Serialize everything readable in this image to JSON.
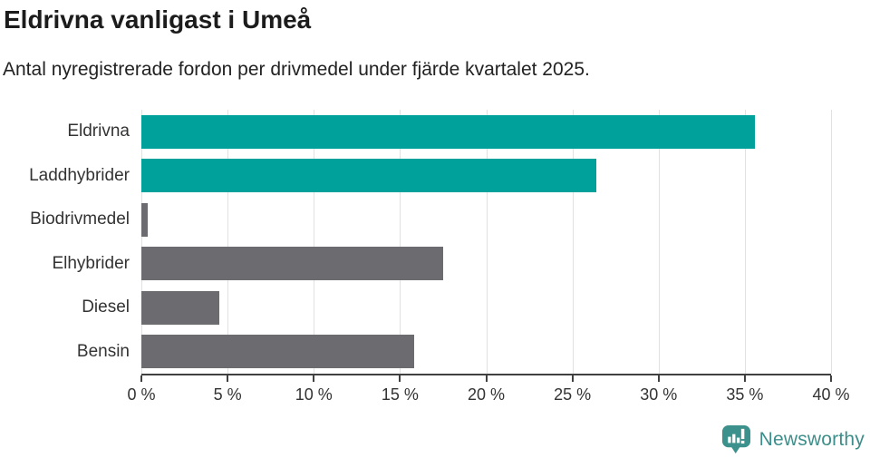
{
  "header": {
    "title": "Eldrivna vanligast i Umeå",
    "subtitle": "Antal nyregistrerade fordon per drivmedel under fjärde kvartalet 2025."
  },
  "chart_data": {
    "type": "bar",
    "orientation": "horizontal",
    "title": "Eldrivna vanligast i Umeå",
    "subtitle": "Antal nyregistrerade fordon per drivmedel under fjärde kvartalet 2025.",
    "categories": [
      "Eldrivna",
      "Laddhybrider",
      "Biodrivmedel",
      "Elhybrider",
      "Diesel",
      "Bensin"
    ],
    "values": [
      35.6,
      26.4,
      0.35,
      17.5,
      4.5,
      15.8
    ],
    "unit": "%",
    "bar_colors": [
      "#00a19a",
      "#00a19a",
      "#6b6b70",
      "#6b6b70",
      "#6b6b70",
      "#6b6b70"
    ],
    "xlim": [
      0,
      40
    ],
    "xticks": [
      {
        "value": 0,
        "label": "0 %"
      },
      {
        "value": 5,
        "label": "5 %"
      },
      {
        "value": 10,
        "label": "10 %"
      },
      {
        "value": 15,
        "label": "15 %"
      },
      {
        "value": 20,
        "label": "20 %"
      },
      {
        "value": 25,
        "label": "25 %"
      },
      {
        "value": 30,
        "label": "30 %"
      },
      {
        "value": 35,
        "label": "35 %"
      },
      {
        "value": 40,
        "label": "40 %"
      }
    ],
    "xlabel": "",
    "ylabel": "",
    "grid": true,
    "legend": false
  },
  "footer": {
    "brand": "Newsworthy"
  },
  "colors": {
    "series_teal": "#00a19a",
    "series_gray": "#6b6b70",
    "grid": "#e1e1e1",
    "axis": "#404040",
    "title_text": "#1c1c1c",
    "label_text": "#333333",
    "brand": "#3d8e8a"
  },
  "icons": {
    "brand_logo": "newsworthy-chart-bubble-icon"
  }
}
